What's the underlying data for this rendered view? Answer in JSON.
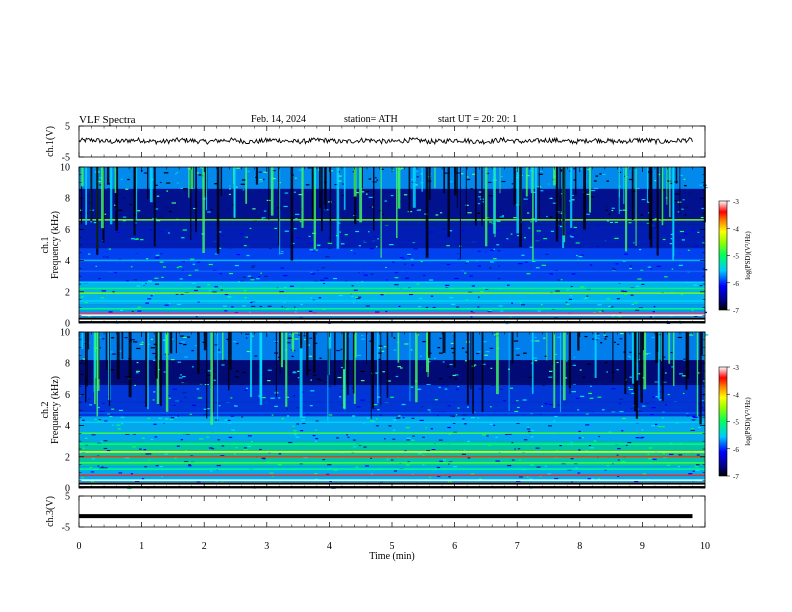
{
  "header": {
    "title": "VLF  Spectra",
    "date": "Feb. 14, 2024",
    "station": "station= ATH",
    "start": "start  UT  =   20: 20: 1"
  },
  "chart_data": [
    {
      "type": "line",
      "name": "ch1-waveform",
      "ylabel": "ch.1(V)",
      "ylim": [
        -5,
        5
      ],
      "y_tick_labels": [
        "-5",
        "5"
      ],
      "series_color": "#000000",
      "description_level": 0.2
    },
    {
      "type": "heatmap",
      "name": "ch1-spectrogram",
      "ylabel": "ch.1\nFrequency  (kHz)",
      "ylim": [
        0,
        10
      ],
      "y_tick_labels": [
        "0",
        "2",
        "4",
        "6",
        "8",
        "10"
      ],
      "xlim": [
        0,
        10
      ],
      "colorbar": {
        "label": "log(PSD)(V²/Hz)",
        "range": [
          -7,
          -3
        ],
        "tick_labels": [
          "-7",
          "-6",
          "-5",
          "-4",
          "-3"
        ]
      }
    },
    {
      "type": "heatmap",
      "name": "ch2-spectrogram",
      "ylabel": "ch.2\nFrequency  (kHz)",
      "ylim": [
        0,
        10
      ],
      "y_tick_labels": [
        "0",
        "2",
        "4",
        "6",
        "8",
        "10"
      ],
      "xlim": [
        0,
        10
      ],
      "colorbar": {
        "label": "log(PSD)(V²/Hz)",
        "range": [
          -7,
          -3
        ],
        "tick_labels": [
          "-7",
          "-6",
          "-5",
          "-4",
          "-3"
        ]
      }
    },
    {
      "type": "line",
      "name": "ch3-waveform",
      "ylabel": "ch.3(V)",
      "ylim": [
        -5,
        5
      ],
      "y_tick_labels": [
        "-5",
        "5"
      ],
      "series_color": "#000000",
      "description_level": -1.5
    }
  ],
  "x_axis": {
    "label": "Time  (min)",
    "tick_labels": [
      "0",
      "1",
      "2",
      "3",
      "4",
      "5",
      "6",
      "7",
      "8",
      "9",
      "10"
    ],
    "range": [
      0,
      10
    ]
  }
}
